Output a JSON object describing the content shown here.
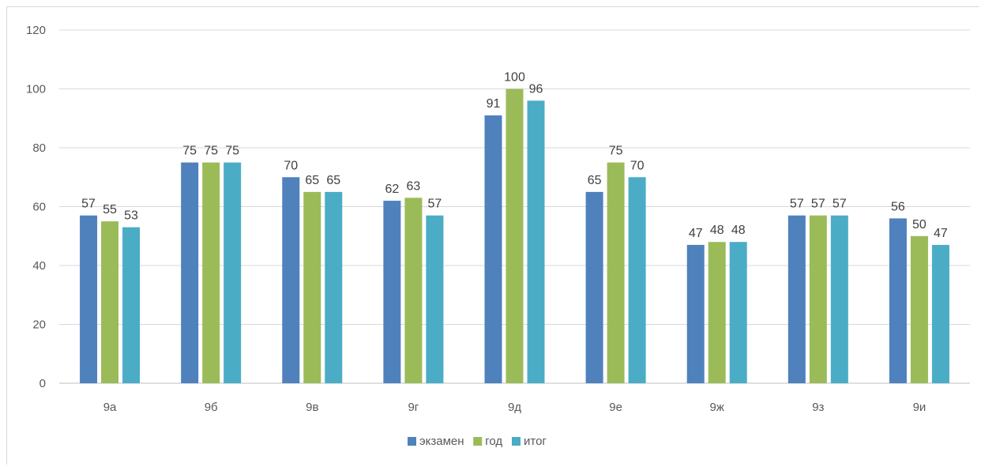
{
  "chart_data": {
    "type": "bar",
    "categories": [
      "9а",
      "9б",
      "9в",
      "9г",
      "9д",
      "9е",
      "9ж",
      "9з",
      "9и"
    ],
    "series": [
      {
        "name": "экзамен",
        "color": "#4f81bd",
        "values": [
          57,
          75,
          70,
          62,
          91,
          65,
          47,
          57,
          56
        ]
      },
      {
        "name": "год",
        "color": "#9bbb59",
        "values": [
          55,
          75,
          65,
          63,
          100,
          75,
          48,
          57,
          50
        ]
      },
      {
        "name": "итог",
        "color": "#4bacc6",
        "values": [
          53,
          75,
          65,
          57,
          96,
          70,
          48,
          57,
          47
        ]
      }
    ],
    "ylim": [
      0,
      120
    ],
    "yticks": [
      0,
      20,
      40,
      60,
      80,
      100,
      120
    ],
    "grid": true,
    "legend_position": "bottom"
  }
}
